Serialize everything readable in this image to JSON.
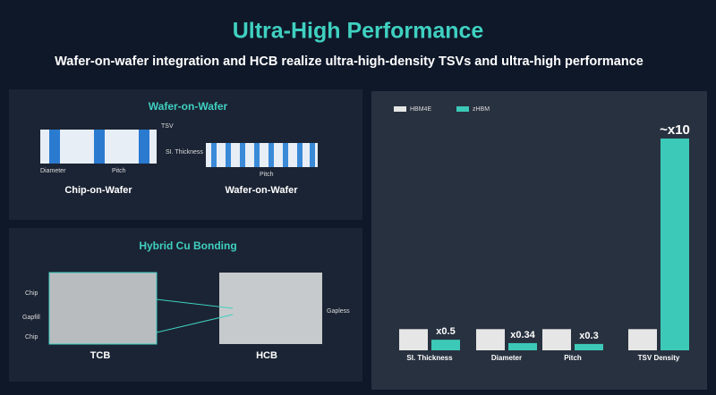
{
  "header": {
    "title": "Ultra-High Performance",
    "subtitle": "Wafer-on-wafer integration and HCB realize ultra-high-density TSVs and ultra-high performance"
  },
  "wow_panel": {
    "title": "Wafer-on-Wafer",
    "labels": {
      "tsv": "TSV",
      "thickness": "SI. Thickness",
      "diameter": "Diameter",
      "pitch_left": "Pitch",
      "pitch_right": "Pitch"
    },
    "captions": [
      "Chip-on-Wafer",
      "Wafer-on-Wafer"
    ]
  },
  "hcb_panel": {
    "title": "Hybrid Cu Bonding",
    "labels": {
      "chip_top": "Chip",
      "gapfill": "Gapfill",
      "chip_bottom": "Chip",
      "gapless": "Gapless"
    },
    "captions": [
      "TCB",
      "HCB"
    ]
  },
  "chart_data": {
    "type": "bar",
    "categories": [
      "SI. Thickness",
      "Diameter",
      "Pitch",
      "TSV Density"
    ],
    "series": [
      {
        "name": "HBM4E",
        "color": "#e6e6e6",
        "values": [
          1,
          1,
          1,
          1
        ]
      },
      {
        "name": "zHBM",
        "color": "#3cc9b8",
        "values": [
          0.5,
          0.34,
          0.3,
          10
        ],
        "value_labels": [
          "x0.5",
          "x0.34",
          "x0.3",
          "~x10"
        ]
      }
    ]
  }
}
